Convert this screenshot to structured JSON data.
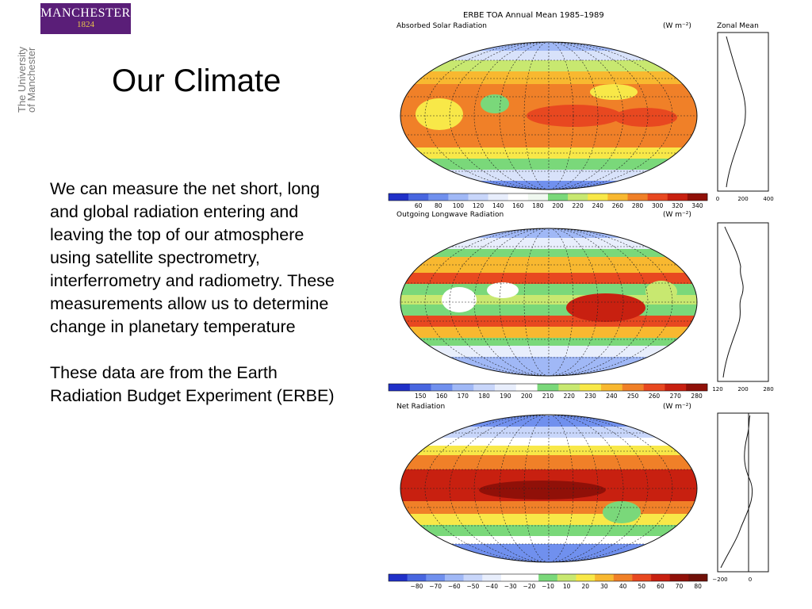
{
  "logo": {
    "name": "MANCHESTER",
    "year": "1824"
  },
  "sidebar_text": {
    "line1": "The University",
    "line2": "of Manchester"
  },
  "slide": {
    "title": "Our Climate",
    "paragraph1": "We can measure the net short, long and global radiation entering and leaving the top of our atmosphere using satellite spectrometry, interferrometry and radiometry.  These measurements allow us to determine change in planetary temperature",
    "paragraph2": "These data are from the Earth Radiation Budget Experiment (ERBE)"
  },
  "figure": {
    "header": "ERBE TOA Annual Mean 1985–1989",
    "zonal_header": "Zonal Mean",
    "units": "(W m⁻²)",
    "panels": [
      {
        "label": "Absorbed Solar Radiation",
        "scale_ticks": [
          "60",
          "80",
          "100",
          "120",
          "140",
          "160",
          "180",
          "200",
          "220",
          "240",
          "260",
          "280",
          "300",
          "320",
          "340"
        ],
        "zonal_ticks": [
          "0",
          "200",
          "400"
        ],
        "colors": [
          "#2030c8",
          "#4866e0",
          "#7090ee",
          "#a0b8f6",
          "#c8d6fa",
          "#e8eefc",
          "#ffffff",
          "#f0f8f0",
          "#7ad87a",
          "#c8e870",
          "#f8e848",
          "#f8b830",
          "#f08028",
          "#e84820",
          "#c82010",
          "#901008"
        ]
      },
      {
        "label": "Outgoing Longwave Radiation",
        "scale_ticks": [
          "150",
          "160",
          "170",
          "180",
          "190",
          "200",
          "210",
          "220",
          "230",
          "240",
          "250",
          "260",
          "270",
          "280"
        ],
        "zonal_ticks": [
          "120",
          "200",
          "280"
        ],
        "colors": [
          "#2030c8",
          "#4866e0",
          "#7090ee",
          "#a0b8f6",
          "#c8d6fa",
          "#e8eefc",
          "#ffffff",
          "#7ad87a",
          "#c8e870",
          "#f8e848",
          "#f8b830",
          "#f08028",
          "#e84820",
          "#c82010",
          "#901008"
        ]
      },
      {
        "label": "Net Radiation",
        "scale_ticks": [
          "−80",
          "−70",
          "−60",
          "−50",
          "−40",
          "−30",
          "−20",
          "−10",
          "10",
          "20",
          "30",
          "40",
          "50",
          "60",
          "70",
          "80"
        ],
        "zonal_ticks": [
          "−200",
          "0"
        ],
        "colors": [
          "#2030c8",
          "#4866e0",
          "#7090ee",
          "#a0b8f6",
          "#c8d6fa",
          "#e8eefc",
          "#ffffff",
          "#ffffff",
          "#7ad87a",
          "#c8e870",
          "#f8e848",
          "#f8b830",
          "#f08028",
          "#e84820",
          "#c82010",
          "#901008",
          "#701008"
        ]
      }
    ]
  }
}
